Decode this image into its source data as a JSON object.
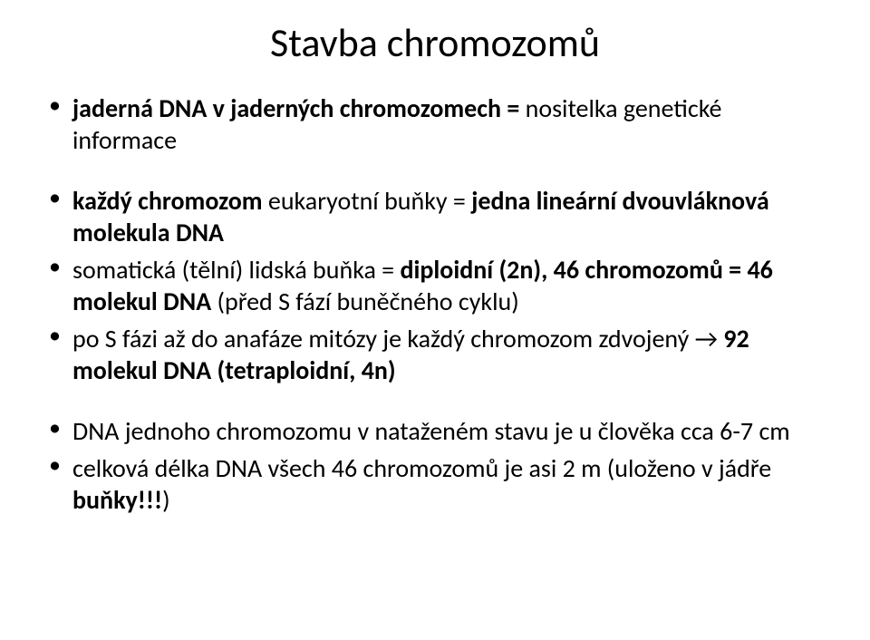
{
  "title": {
    "text": "Stavba chromozomů",
    "fontsize": 44,
    "color": "#000000",
    "weight": 400
  },
  "bullets": {
    "fontsize": 28,
    "line_height": 1.25,
    "color": "#000000",
    "bullet_color": "#000000",
    "items": [
      {
        "runs": [
          {
            "t": "jaderná DNA v jaderných chromozomech = ",
            "bold": true
          },
          {
            "t": "nositelka genetické informace",
            "bold": false
          }
        ]
      },
      {
        "spacer": true
      },
      {
        "runs": [
          {
            "t": "každý chromozom ",
            "bold": true
          },
          {
            "t": "eukaryotní buňky = ",
            "bold": false
          },
          {
            "t": "jedna lineární dvouvláknová molekula DNA",
            "bold": true
          }
        ]
      },
      {
        "runs": [
          {
            "t": "somatická (tělní) lidská buňka = ",
            "bold": false
          },
          {
            "t": "diploidní (2n), 46 chromozomů = 46 molekul DNA ",
            "bold": true
          },
          {
            "t": "(před S fází buněčného cyklu)",
            "bold": false
          }
        ]
      },
      {
        "runs": [
          {
            "t": "po S fázi až do anafáze mitózy je každý chromozom zdvojený → ",
            "bold": false
          },
          {
            "t": "92 molekul DNA (tetraploidní, 4n)",
            "bold": true
          }
        ]
      },
      {
        "spacer": true
      },
      {
        "runs": [
          {
            "t": "DNA jednoho chromozomu v nataženém stavu je u člověka cca 6-7 cm",
            "bold": false
          }
        ]
      },
      {
        "runs": [
          {
            "t": "celková délka DNA všech 46 chromozomů je asi 2 m (uloženo v jádře ",
            "bold": false
          },
          {
            "t": "buňky!!!",
            "bold": true
          },
          {
            "t": ")",
            "bold": false
          }
        ]
      }
    ]
  },
  "background_color": "#ffffff"
}
